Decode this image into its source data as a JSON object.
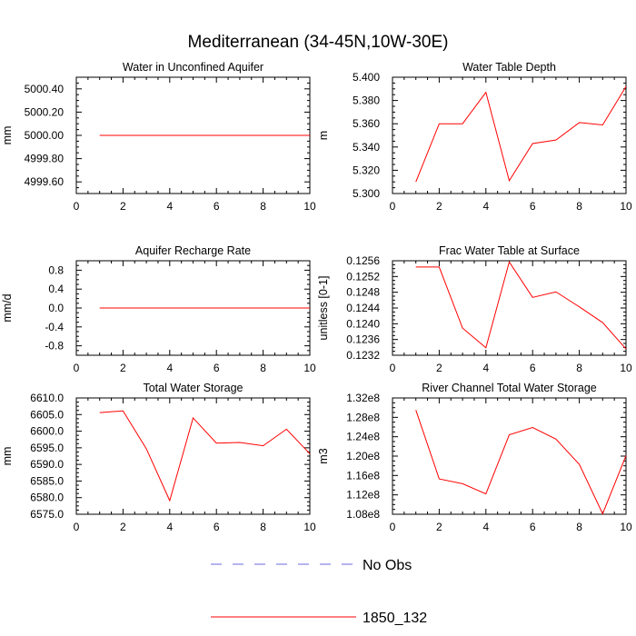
{
  "figure_title": "Mediterranean (34-45N,10W-30E)",
  "legend": [
    {
      "label": "No Obs",
      "color": "#6a6adf",
      "style": "dashed"
    },
    {
      "label": "1850_132",
      "color": "#ff0000",
      "style": "solid"
    }
  ],
  "chart_data": [
    {
      "type": "line",
      "title": "Water in Unconfined Aquifer",
      "xlabel": "",
      "ylabel": "mm",
      "xlim": [
        0,
        10
      ],
      "ylim": [
        4999.5,
        5000.5
      ],
      "x_ticks": [
        0,
        2,
        4,
        6,
        8,
        10
      ],
      "x_tick_labels": [
        "0",
        "2",
        "4",
        "6",
        "8",
        "10"
      ],
      "y_ticks": [
        4999.6,
        4999.8,
        5000.0,
        5000.2,
        5000.4
      ],
      "y_tick_labels": [
        "4999.60",
        "4999.80",
        "5000.00",
        "5000.20",
        "5000.40"
      ],
      "series": [
        {
          "name": "1850_132",
          "color": "#ff0000",
          "x": [
            1,
            2,
            3,
            4,
            5,
            6,
            7,
            8,
            9,
            10
          ],
          "values": [
            5000,
            5000,
            5000,
            5000,
            5000,
            5000,
            5000,
            5000,
            5000,
            5000
          ]
        }
      ]
    },
    {
      "type": "line",
      "title": "Water Table Depth",
      "xlabel": "",
      "ylabel": "m",
      "xlim": [
        0,
        10
      ],
      "ylim": [
        5.3,
        5.4
      ],
      "x_ticks": [
        0,
        2,
        4,
        6,
        8,
        10
      ],
      "x_tick_labels": [
        "0",
        "2",
        "4",
        "6",
        "8",
        "10"
      ],
      "y_ticks": [
        5.3,
        5.32,
        5.34,
        5.36,
        5.38,
        5.4
      ],
      "y_tick_labels": [
        "5.300",
        "5.320",
        "5.340",
        "5.360",
        "5.380",
        "5.400"
      ],
      "series": [
        {
          "name": "1850_132",
          "color": "#ff0000",
          "x": [
            1,
            2,
            3,
            4,
            5,
            6,
            7,
            8,
            9,
            10
          ],
          "values": [
            5.31,
            5.36,
            5.36,
            5.387,
            5.311,
            5.343,
            5.346,
            5.361,
            5.359,
            5.392
          ]
        }
      ]
    },
    {
      "type": "line",
      "title": "Aquifer Recharge Rate",
      "xlabel": "",
      "ylabel": "mm/d",
      "xlim": [
        0,
        10
      ],
      "ylim": [
        -1.0,
        1.0
      ],
      "x_ticks": [
        0,
        2,
        4,
        6,
        8,
        10
      ],
      "x_tick_labels": [
        "0",
        "2",
        "4",
        "6",
        "8",
        "10"
      ],
      "y_ticks": [
        -0.8,
        -0.4,
        0.0,
        0.4,
        0.8
      ],
      "y_tick_labels": [
        "-0.8",
        "-0.4",
        "0.0",
        "0.4",
        "0.8"
      ],
      "series": [
        {
          "name": "1850_132",
          "color": "#ff0000",
          "x": [
            1,
            2,
            3,
            4,
            5,
            6,
            7,
            8,
            9,
            10
          ],
          "values": [
            0,
            0,
            0,
            0,
            0,
            0,
            0,
            0,
            0,
            0
          ]
        }
      ]
    },
    {
      "type": "line",
      "title": "Frac Water Table at Surface",
      "xlabel": "",
      "ylabel": "unitless [0-1]",
      "xlim": [
        0,
        10
      ],
      "ylim": [
        0.1232,
        0.1256
      ],
      "x_ticks": [
        0,
        2,
        4,
        6,
        8,
        10
      ],
      "x_tick_labels": [
        "0",
        "2",
        "4",
        "6",
        "8",
        "10"
      ],
      "y_ticks": [
        0.1232,
        0.1236,
        0.124,
        0.1244,
        0.1248,
        0.1252,
        0.1256
      ],
      "y_tick_labels": [
        "0.1232",
        "0.1236",
        "0.1240",
        "0.1244",
        "0.1248",
        "0.1252",
        "0.1256"
      ],
      "series": [
        {
          "name": "1850_132",
          "color": "#ff0000",
          "x": [
            1,
            2,
            3,
            4,
            5,
            6,
            7,
            8,
            9,
            10
          ],
          "values": [
            0.12544,
            0.12544,
            0.12389,
            0.12339,
            0.12557,
            0.12467,
            0.12481,
            0.12443,
            0.12403,
            0.12336
          ]
        }
      ]
    },
    {
      "type": "line",
      "title": "Total Water Storage",
      "xlabel": "",
      "ylabel": "mm",
      "xlim": [
        0,
        10
      ],
      "ylim": [
        6575.0,
        6610.0
      ],
      "x_ticks": [
        0,
        2,
        4,
        6,
        8,
        10
      ],
      "x_tick_labels": [
        "0",
        "2",
        "4",
        "6",
        "8",
        "10"
      ],
      "y_ticks": [
        6575,
        6580,
        6585,
        6590,
        6595,
        6600,
        6605,
        6610
      ],
      "y_tick_labels": [
        "6575.0",
        "6580.0",
        "6585.0",
        "6590.0",
        "6595.0",
        "6600.0",
        "6605.0",
        "6610.0"
      ],
      "series": [
        {
          "name": "1850_132",
          "color": "#ff0000",
          "x": [
            1,
            2,
            3,
            4,
            5,
            6,
            7,
            8,
            9,
            10
          ],
          "values": [
            6605.6,
            6606.1,
            6594.7,
            6579.1,
            6604.0,
            6596.4,
            6596.6,
            6595.6,
            6600.6,
            6593.2
          ]
        }
      ]
    },
    {
      "type": "line",
      "title": "River Channel Total Water Storage",
      "xlabel": "",
      "ylabel": "m3",
      "xlim": [
        0,
        10
      ],
      "ylim": [
        108000000,
        132000000
      ],
      "x_ticks": [
        0,
        2,
        4,
        6,
        8,
        10
      ],
      "x_tick_labels": [
        "0",
        "2",
        "4",
        "6",
        "8",
        "10"
      ],
      "y_ticks": [
        108000000,
        112000000,
        116000000,
        120000000,
        124000000,
        128000000,
        132000000
      ],
      "y_tick_labels": [
        "1.08e8",
        "1.12e8",
        "1.16e8",
        "1.20e8",
        "1.24e8",
        "1.28e8",
        "1.32e8"
      ],
      "series": [
        {
          "name": "1850_132",
          "color": "#ff0000",
          "x": [
            1,
            2,
            3,
            4,
            5,
            6,
            7,
            8,
            9,
            10
          ],
          "values": [
            129500000,
            115300000,
            114300000,
            112200000,
            124400000,
            125900000,
            123500000,
            118300000,
            108100000,
            120100000
          ]
        }
      ]
    }
  ]
}
